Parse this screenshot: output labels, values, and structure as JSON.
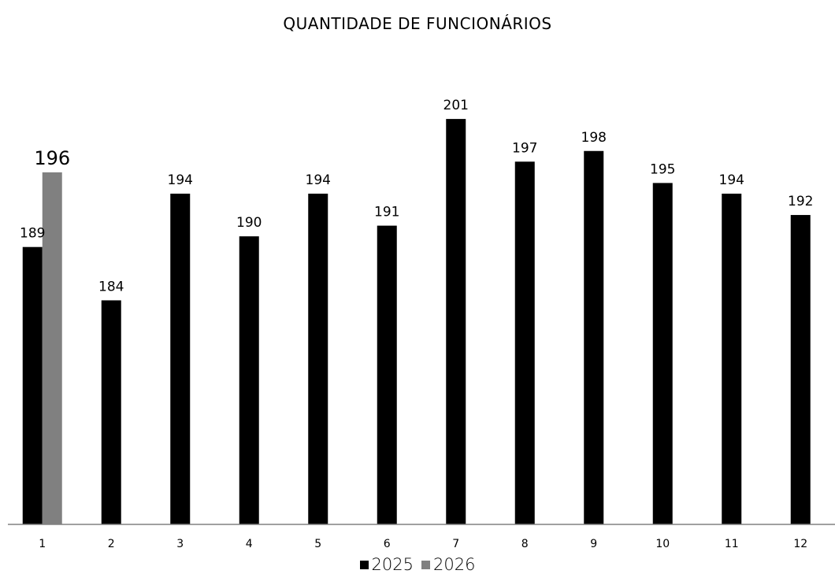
{
  "chart_data": {
    "type": "bar",
    "title": "QUANTIDADE DE FUNCIONÁRIOS",
    "xlabel": "",
    "ylabel": "",
    "categories": [
      "1",
      "2",
      "3",
      "4",
      "5",
      "6",
      "7",
      "8",
      "9",
      "10",
      "11",
      "12"
    ],
    "series": [
      {
        "name": "2025",
        "color": "#000000",
        "values": [
          189,
          184,
          194,
          190,
          194,
          191,
          201,
          197,
          198,
          195,
          194,
          192
        ]
      },
      {
        "name": "2026",
        "color": "#808080",
        "values": [
          196,
          null,
          null,
          null,
          null,
          null,
          null,
          null,
          null,
          null,
          null,
          null
        ]
      }
    ],
    "ylim": [
      163,
      203
    ],
    "grid": false,
    "legend_position": "bottom",
    "data_labels": true
  }
}
